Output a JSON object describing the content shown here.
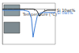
{
  "chart_data": {
    "type": "line",
    "x_label": "Temperature (°C)",
    "x": [
      0,
      10,
      20,
      30,
      40,
      50,
      55,
      58,
      62,
      66,
      70,
      74,
      78,
      85,
      92,
      100
    ],
    "series": [
      {
        "name": "Si 10wt%",
        "color": "#222222",
        "line_style": "solid",
        "values": [
          0,
          0,
          0,
          0,
          0,
          0,
          0,
          0,
          -0.5,
          -2,
          -6,
          -4,
          -2,
          -1,
          -1,
          -1
        ]
      },
      {
        "name": "Si 0wt%",
        "color": "#3a7bd5",
        "line_style": "solid",
        "values": [
          -1,
          -1,
          -1,
          -1,
          -1,
          -2,
          -8,
          -24,
          -14,
          -6,
          -4,
          -3,
          -3,
          -3,
          -3,
          -3
        ]
      }
    ],
    "xlim": [
      0,
      100
    ],
    "ylim": [
      -30,
      5
    ],
    "xticks": [
      0,
      20,
      40,
      60,
      80,
      100
    ],
    "yticks": [
      -30,
      -20,
      -10,
      0
    ],
    "grid": false,
    "tick_labels": false
  }
}
